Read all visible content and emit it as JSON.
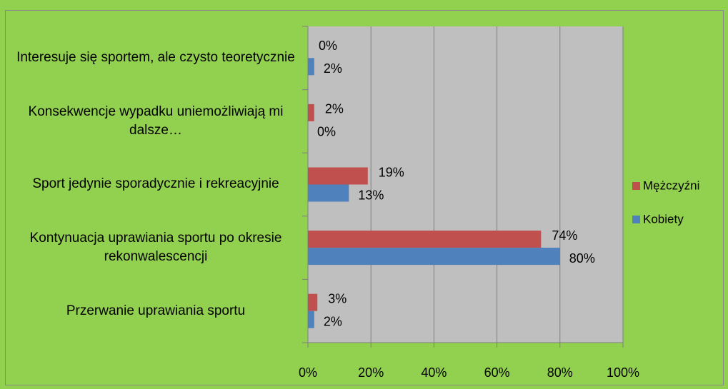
{
  "chart_data": {
    "type": "bar",
    "orientation": "horizontal",
    "categories": [
      "Interesuje się sportem, ale czysto teoretycznie",
      "Konsekwencje wypadku uniemożliwiają mi dalsze…",
      "Sport jedynie sporadycznie i rekreacyjnie",
      "Kontynuacja uprawiania sportu po okresie rekonwalescencji",
      "Przerwanie uprawiania sportu"
    ],
    "series": [
      {
        "name": "Mężczyźni",
        "color": "#c0504d",
        "values": [
          0,
          2,
          19,
          74,
          3
        ],
        "value_labels": [
          "0%",
          "2%",
          "19%",
          "74%",
          "3%"
        ]
      },
      {
        "name": "Kobiety",
        "color": "#4f81bd",
        "values": [
          2,
          0,
          13,
          80,
          2
        ],
        "value_labels": [
          "2%",
          "0%",
          "13%",
          "80%",
          "2%"
        ]
      }
    ],
    "xlim": [
      0,
      100
    ],
    "xticks": [
      {
        "value": 0,
        "label": "0%"
      },
      {
        "value": 20,
        "label": "20%"
      },
      {
        "value": 40,
        "label": "40%"
      },
      {
        "value": 60,
        "label": "60%"
      },
      {
        "value": 80,
        "label": "80%"
      },
      {
        "value": 100,
        "label": "100%"
      }
    ],
    "grid": true,
    "legend": "right"
  }
}
